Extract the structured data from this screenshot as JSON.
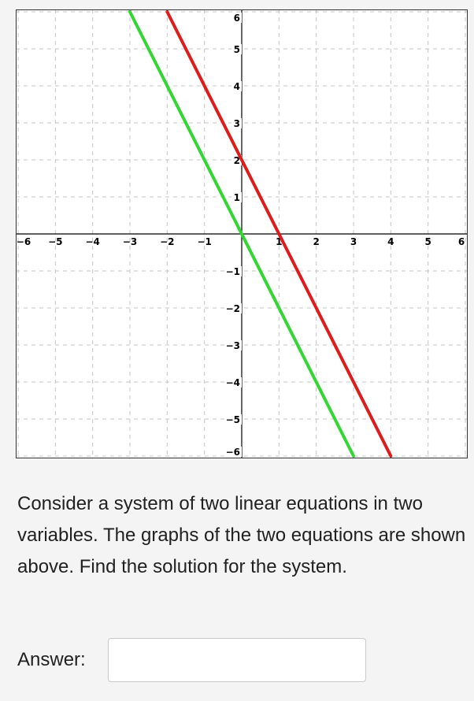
{
  "chart_data": {
    "type": "line",
    "xlim": [
      -6,
      6
    ],
    "ylim": [
      -6,
      6
    ],
    "grid": true,
    "x_ticks": [
      -6,
      -5,
      -4,
      -3,
      -2,
      -1,
      1,
      2,
      3,
      4,
      5,
      6
    ],
    "y_ticks": [
      -6,
      -5,
      -4,
      -3,
      -2,
      -1,
      1,
      2,
      3,
      4,
      5,
      6
    ],
    "x_tick_labels": [
      "−6",
      "−5",
      "−4",
      "−3",
      "−2",
      "−1",
      "1",
      "2",
      "3",
      "4",
      "5",
      "6"
    ],
    "y_tick_labels": [
      "−6",
      "−5",
      "−4",
      "−3",
      "−2",
      "−1",
      "1",
      "2",
      "3",
      "4",
      "5",
      "6"
    ],
    "series": [
      {
        "color": "#dd1c1c",
        "points": [
          [
            -2,
            6
          ],
          [
            4,
            -6
          ]
        ]
      },
      {
        "color": "#33d633",
        "points": [
          [
            -3,
            6
          ],
          [
            3,
            -6
          ]
        ]
      }
    ]
  },
  "question": {
    "text": "Consider a system of two linear equations in two variables. The graphs of the two equations are shown above. Find the solution for the system."
  },
  "answer": {
    "label": "Answer:",
    "value": ""
  }
}
